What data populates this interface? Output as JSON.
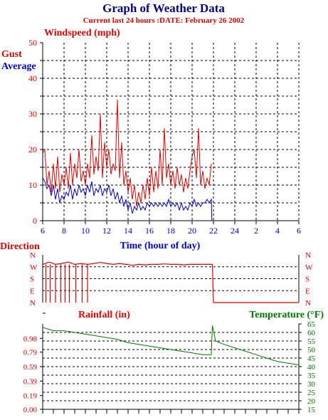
{
  "title": "Graph of Weather Data",
  "subtitle": "Current last 24 hours :DATE: February 26 2002",
  "colors": {
    "title": "#00007f",
    "red": "#e00000",
    "blue": "#0000cc",
    "green": "#007700",
    "grid": "#000000"
  },
  "chart_data": [
    {
      "type": "line",
      "ylabel": "Windspeed (mph)",
      "xlabel": "Time (hour of day)",
      "ylim": [
        0,
        50
      ],
      "yticks": [
        "0",
        "5",
        "10",
        "15",
        "20",
        "25",
        "30",
        "35",
        "40",
        "45",
        "50"
      ],
      "ytick_labels": [
        "0",
        "10",
        "20",
        "30",
        "40",
        "50"
      ],
      "xticks": [
        "6",
        "8",
        "10",
        "12",
        "14",
        "16",
        "18",
        "20",
        "22",
        "24",
        "2",
        "4",
        "6"
      ],
      "grid": true,
      "legend": [
        "Gust",
        "Average"
      ],
      "series": [
        {
          "name": "Gust",
          "color": "#e00000",
          "x": [
            6.0,
            6.2,
            6.4,
            6.6,
            6.8,
            7.0,
            7.2,
            7.4,
            7.6,
            7.8,
            8.0,
            8.2,
            8.4,
            8.6,
            8.8,
            9.0,
            9.2,
            9.4,
            9.6,
            9.8,
            10.0,
            10.2,
            10.4,
            10.6,
            10.8,
            11.0,
            11.2,
            11.4,
            11.6,
            11.8,
            12.0,
            12.2,
            12.4,
            12.6,
            12.8,
            13.0,
            13.2,
            13.4,
            13.6,
            13.8,
            14.0,
            14.2,
            14.4,
            14.6,
            14.8,
            15.0,
            15.2,
            15.4,
            15.6,
            15.8,
            16.0,
            16.2,
            16.4,
            16.6,
            16.8,
            17.0,
            17.2,
            17.4,
            17.6,
            17.8,
            18.0,
            18.2,
            18.4,
            18.6,
            18.8,
            19.0,
            19.2,
            19.4,
            19.6,
            19.8,
            20.0,
            20.2,
            20.4,
            20.6,
            20.8,
            21.0,
            21.2,
            21.4,
            21.6,
            21.8
          ],
          "y": [
            19,
            20,
            10,
            14,
            8,
            16,
            9,
            18,
            8,
            13,
            10,
            15,
            9,
            19,
            10,
            16,
            12,
            20,
            11,
            14,
            10,
            16,
            12,
            24,
            13,
            18,
            14,
            30,
            12,
            22,
            15,
            20,
            13,
            16,
            14,
            34,
            12,
            22,
            10,
            14,
            8,
            12,
            6,
            10,
            4,
            8,
            5,
            10,
            6,
            12,
            7,
            15,
            8,
            14,
            9,
            20,
            10,
            26,
            12,
            16,
            10,
            14,
            9,
            15,
            10,
            13,
            8,
            12,
            9,
            14,
            18,
            20,
            12,
            26,
            10,
            14,
            9,
            12,
            10,
            16
          ]
        },
        {
          "name": "Average",
          "color": "#0000cc",
          "x": [
            6.0,
            6.2,
            6.4,
            6.6,
            6.8,
            7.0,
            7.2,
            7.4,
            7.6,
            7.8,
            8.0,
            8.2,
            8.4,
            8.6,
            8.8,
            9.0,
            9.2,
            9.4,
            9.6,
            9.8,
            10.0,
            10.2,
            10.4,
            10.6,
            10.8,
            11.0,
            11.2,
            11.4,
            11.6,
            11.8,
            12.0,
            12.2,
            12.4,
            12.6,
            12.8,
            13.0,
            13.2,
            13.4,
            13.6,
            13.8,
            14.0,
            14.2,
            14.4,
            14.6,
            14.8,
            15.0,
            15.2,
            15.4,
            15.6,
            15.8,
            16.0,
            16.2,
            16.4,
            16.6,
            16.8,
            17.0,
            17.2,
            17.4,
            17.6,
            17.8,
            18.0,
            18.2,
            18.4,
            18.6,
            18.8,
            19.0,
            19.2,
            19.4,
            19.6,
            19.8,
            20.0,
            20.2,
            20.4,
            20.6,
            20.8,
            21.0,
            21.2,
            21.4,
            21.6,
            21.8,
            21.85
          ],
          "y": [
            12,
            11,
            9,
            10,
            7,
            10,
            6,
            9,
            5,
            7,
            6,
            8,
            7,
            10,
            6,
            9,
            7,
            10,
            8,
            9,
            7,
            10,
            8,
            11,
            7,
            9,
            8,
            10,
            7,
            9,
            8,
            10,
            7,
            9,
            6,
            8,
            5,
            7,
            4,
            6,
            3,
            5,
            2,
            4,
            3,
            5,
            3,
            4,
            3,
            5,
            4,
            5,
            4,
            5,
            4,
            5,
            4,
            5,
            4,
            6,
            4,
            5,
            4,
            5,
            3,
            5,
            3,
            4,
            3,
            5,
            4,
            6,
            4,
            5,
            4,
            5,
            5,
            6,
            5,
            6,
            0
          ]
        }
      ]
    },
    {
      "type": "line",
      "ylabel": "Direction",
      "yticks": [
        "N",
        "W",
        "S",
        "E",
        "N"
      ],
      "xlim": [
        6,
        30
      ],
      "grid": true,
      "series": [
        {
          "name": "Direction",
          "color": "#e00000",
          "x": [
            6.0,
            6.6,
            7.2,
            7.8,
            8.4,
            9.0,
            9.6,
            10.2,
            10.8,
            11.4,
            12.0,
            12.6,
            13.2,
            13.8,
            14.4,
            15.0,
            15.6,
            16.2,
            16.8,
            17.4,
            18.0,
            18.6,
            19.2,
            19.8,
            20.4,
            21.0,
            21.6,
            21.9,
            22.0,
            30.0
          ],
          "y": [
            0.8,
            0.85,
            0.8,
            0.82,
            0.85,
            0.8,
            0.82,
            0.8,
            0.82,
            0.84,
            0.82,
            0.8,
            0.82,
            0.8,
            0.78,
            0.8,
            0.79,
            0.8,
            0.8,
            0.81,
            0.8,
            0.8,
            0.79,
            0.8,
            0.8,
            0.8,
            0.8,
            0.8,
            0,
            0
          ]
        }
      ]
    },
    {
      "type": "line",
      "ylabel": "Rainfall (in)",
      "y2label": "Temperature (°F)",
      "yticks": [
        "0.00",
        "0.19",
        "0.39",
        "0.59",
        "0.79",
        "0.98"
      ],
      "y2ticks": [
        "15",
        "20",
        "25",
        "30",
        "35",
        "40",
        "45",
        "50",
        "55",
        "60",
        "65"
      ],
      "grid": true,
      "series": [
        {
          "name": "Temperature",
          "color": "#007700",
          "x": [
            6.0,
            7.0,
            8.0,
            9.0,
            10.0,
            11.0,
            12.0,
            13.0,
            14.0,
            15.0,
            16.0,
            17.0,
            18.0,
            19.0,
            20.0,
            21.0,
            21.8,
            21.9,
            22.2,
            23.0,
            24.0,
            25.0,
            26.0,
            27.0,
            28.0,
            29.0,
            30.0
          ],
          "y": [
            63,
            61,
            61,
            60,
            59,
            58,
            57,
            56,
            54,
            53,
            52,
            51,
            50,
            49,
            48,
            47,
            47,
            64,
            55,
            53,
            51,
            49,
            47,
            45,
            43,
            42,
            41
          ]
        }
      ]
    }
  ]
}
